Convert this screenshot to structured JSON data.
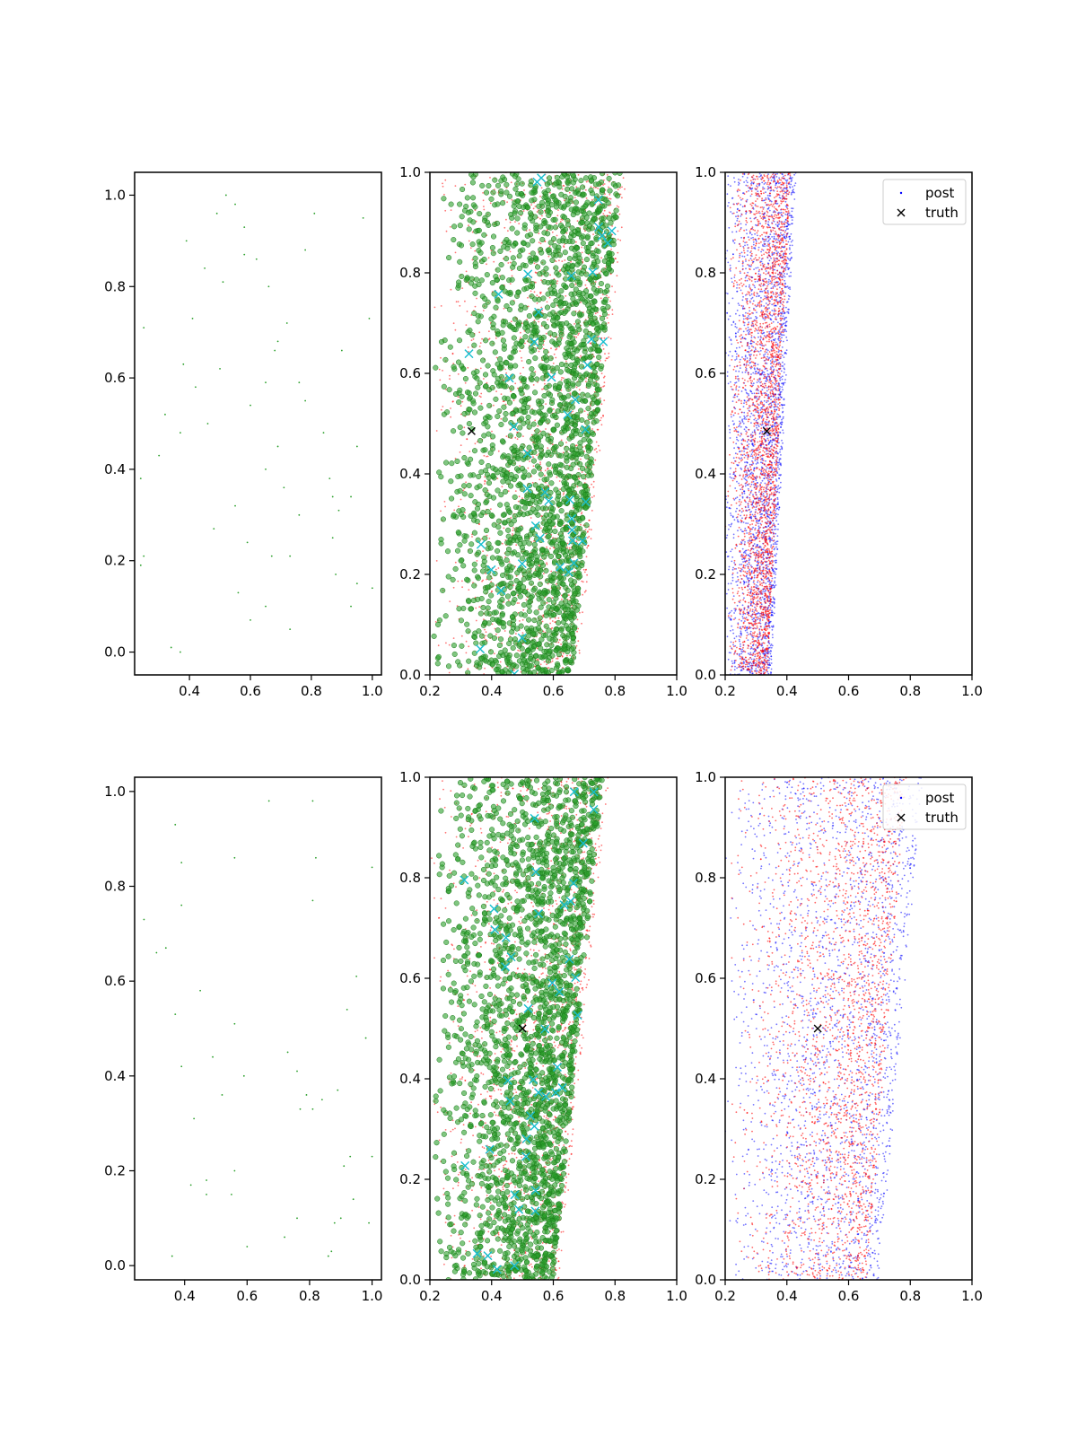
{
  "chart_data": [
    {
      "type": "scatter",
      "row": 0,
      "col": 0,
      "xlim": [
        0.22,
        1.03
      ],
      "ylim": [
        -0.05,
        1.05
      ],
      "xticks": [
        0.4,
        0.6,
        0.8,
        1.0
      ],
      "xtick_labels": [
        "0.4",
        "0.6",
        "0.8",
        "1.0"
      ],
      "yticks": [
        0.0,
        0.2,
        0.4,
        0.6,
        0.8,
        1.0
      ],
      "ytick_labels": [
        "0.0",
        "0.2",
        "0.4",
        "0.6",
        "0.8",
        "1.0"
      ],
      "series": [
        {
          "kind": "tiny-dots",
          "color": "#2ca02c",
          "x": [
            0.52,
            0.55,
            0.49,
            0.58,
            0.39,
            0.58,
            0.45,
            0.51,
            0.66,
            0.81,
            0.97,
            0.25,
            0.41,
            0.72,
            0.69,
            0.68,
            0.9,
            0.38,
            0.65,
            0.76,
            0.78,
            0.6,
            0.37,
            0.46,
            0.69,
            0.24,
            0.65,
            0.86,
            0.87,
            0.93,
            0.89,
            0.76,
            0.87,
            0.59,
            0.67,
            0.73,
            0.25,
            0.24,
            0.88,
            0.95,
            1.0,
            0.56,
            0.65,
            0.93,
            0.6,
            0.73,
            0.34,
            0.37,
            0.32,
            0.5,
            0.71,
            0.84,
            0.95,
            0.48,
            0.55,
            0.3,
            0.42,
            0.62,
            0.78,
            0.99
          ],
          "y": [
            1.0,
            0.98,
            0.96,
            0.93,
            0.9,
            0.87,
            0.84,
            0.81,
            0.8,
            0.96,
            0.95,
            0.71,
            0.73,
            0.72,
            0.68,
            0.66,
            0.66,
            0.63,
            0.59,
            0.59,
            0.55,
            0.54,
            0.48,
            0.5,
            0.45,
            0.38,
            0.4,
            0.38,
            0.34,
            0.34,
            0.31,
            0.3,
            0.25,
            0.24,
            0.21,
            0.21,
            0.21,
            0.19,
            0.17,
            0.15,
            0.14,
            0.13,
            0.1,
            0.1,
            0.07,
            0.05,
            0.01,
            0.0,
            0.52,
            0.62,
            0.36,
            0.48,
            0.45,
            0.27,
            0.32,
            0.43,
            0.58,
            0.86,
            0.88,
            0.73
          ]
        }
      ]
    },
    {
      "type": "scatter",
      "row": 0,
      "col": 1,
      "xlim": [
        0.2,
        1.0
      ],
      "ylim": [
        0.0,
        1.0
      ],
      "xticks": [
        0.2,
        0.4,
        0.6,
        0.8,
        1.0
      ],
      "xtick_labels": [
        "0.2",
        "0.4",
        "0.6",
        "0.8",
        "1.0"
      ],
      "yticks": [
        0.0,
        0.2,
        0.4,
        0.6,
        0.8,
        1.0
      ],
      "ytick_labels": [
        "0.0",
        "0.2",
        "0.4",
        "0.6",
        "0.8",
        "1.0"
      ],
      "band": {
        "left_at_y0": 0.2,
        "right_at_y0": 0.66,
        "left_at_y1": 0.2,
        "right_at_y1": 0.82,
        "peak_at_y0": 0.56,
        "peak_at_y1": 0.66,
        "green_points": 2200,
        "red_points": 1600,
        "cyan_points": 45
      },
      "truth": {
        "x": 0.335,
        "y": 0.485
      }
    },
    {
      "type": "scatter",
      "row": 0,
      "col": 2,
      "xlim": [
        0.2,
        1.0
      ],
      "ylim": [
        0.0,
        1.0
      ],
      "xticks": [
        0.2,
        0.4,
        0.6,
        0.8,
        1.0
      ],
      "xtick_labels": [
        "0.2",
        "0.4",
        "0.6",
        "0.8",
        "1.0"
      ],
      "yticks": [
        0.0,
        0.2,
        0.4,
        0.6,
        0.8,
        1.0
      ],
      "ytick_labels": [
        "0.0",
        "0.2",
        "0.4",
        "0.6",
        "0.8",
        "1.0"
      ],
      "band": {
        "left_at_y0": 0.2,
        "right_at_y0": 0.35,
        "left_at_y1": 0.2,
        "right_at_y1": 0.43,
        "blue_points": 2600,
        "red_points": 2600
      },
      "truth": {
        "x": 0.335,
        "y": 0.485
      },
      "legend": {
        "position": "upper-right",
        "entries": [
          "post",
          "truth"
        ]
      }
    },
    {
      "type": "scatter",
      "row": 1,
      "col": 0,
      "xlim": [
        0.24,
        1.03
      ],
      "ylim": [
        -0.03,
        1.03
      ],
      "xticks": [
        0.4,
        0.6,
        0.8,
        1.0
      ],
      "xtick_labels": [
        "0.4",
        "0.6",
        "0.8",
        "1.0"
      ],
      "yticks": [
        0.0,
        0.2,
        0.4,
        0.6,
        0.8,
        1.0
      ],
      "ytick_labels": [
        "0.0",
        "0.2",
        "0.4",
        "0.6",
        "0.8",
        "1.0"
      ],
      "series": [
        {
          "kind": "tiny-dots",
          "color": "#2ca02c",
          "x": [
            0.67,
            0.81,
            0.37,
            0.56,
            0.82,
            0.39,
            1.0,
            0.27,
            0.39,
            0.31,
            0.34,
            0.81,
            0.45,
            0.95,
            0.37,
            0.56,
            0.92,
            0.49,
            0.73,
            0.39,
            0.59,
            0.76,
            0.79,
            0.52,
            0.89,
            0.84,
            0.77,
            0.81,
            0.43,
            0.98,
            0.93,
            1.0,
            0.56,
            0.91,
            0.47,
            0.42,
            0.55,
            0.47,
            0.94,
            0.9,
            0.76,
            0.99,
            0.88,
            0.72,
            0.6,
            0.87,
            0.36,
            0.86
          ],
          "y": [
            0.98,
            0.98,
            0.93,
            0.86,
            0.86,
            0.85,
            0.84,
            0.73,
            0.76,
            0.66,
            0.67,
            0.77,
            0.58,
            0.61,
            0.53,
            0.51,
            0.54,
            0.44,
            0.45,
            0.42,
            0.4,
            0.41,
            0.36,
            0.36,
            0.37,
            0.35,
            0.33,
            0.33,
            0.31,
            0.48,
            0.23,
            0.23,
            0.2,
            0.21,
            0.18,
            0.17,
            0.15,
            0.15,
            0.14,
            0.1,
            0.1,
            0.09,
            0.09,
            0.06,
            0.04,
            0.03,
            0.02,
            0.02
          ]
        }
      ]
    },
    {
      "type": "scatter",
      "row": 1,
      "col": 1,
      "xlim": [
        0.2,
        1.0
      ],
      "ylim": [
        0.0,
        1.0
      ],
      "xticks": [
        0.2,
        0.4,
        0.6,
        0.8,
        1.0
      ],
      "xtick_labels": [
        "0.2",
        "0.4",
        "0.6",
        "0.8",
        "1.0"
      ],
      "yticks": [
        0.0,
        0.2,
        0.4,
        0.6,
        0.8,
        1.0
      ],
      "ytick_labels": [
        "0.0",
        "0.2",
        "0.4",
        "0.6",
        "0.8",
        "1.0"
      ],
      "band": {
        "left_at_y0": 0.2,
        "right_at_y0": 0.6,
        "left_at_y1": 0.2,
        "right_at_y1": 0.76,
        "peak_at_y0": 0.52,
        "peak_at_y1": 0.6,
        "green_points": 2200,
        "red_points": 1600,
        "cyan_points": 45
      },
      "truth": {
        "x": 0.5,
        "y": 0.5
      }
    },
    {
      "type": "scatter",
      "row": 1,
      "col": 2,
      "xlim": [
        0.2,
        1.0
      ],
      "ylim": [
        0.0,
        1.0
      ],
      "xticks": [
        0.2,
        0.4,
        0.6,
        0.8,
        1.0
      ],
      "xtick_labels": [
        "0.2",
        "0.4",
        "0.6",
        "0.8",
        "1.0"
      ],
      "yticks": [
        0.0,
        0.2,
        0.4,
        0.6,
        0.8,
        1.0
      ],
      "ytick_labels": [
        "0.0",
        "0.2",
        "0.4",
        "0.6",
        "0.8",
        "1.0"
      ],
      "band": {
        "left_at_y0": 0.2,
        "right_at_y0": 0.7,
        "left_at_y1": 0.2,
        "right_at_y1": 0.84,
        "blue_points": 2200,
        "red_points": 2200
      },
      "truth": {
        "x": 0.5,
        "y": 0.5
      },
      "legend": {
        "position": "upper-right",
        "entries": [
          "post",
          "truth"
        ]
      }
    }
  ],
  "colors": {
    "green": "#2ca02c",
    "dark_green": "#1a7a1a",
    "red": "#ff0000",
    "blue": "#0000ff",
    "cyan": "#17becf",
    "black": "#000000"
  }
}
